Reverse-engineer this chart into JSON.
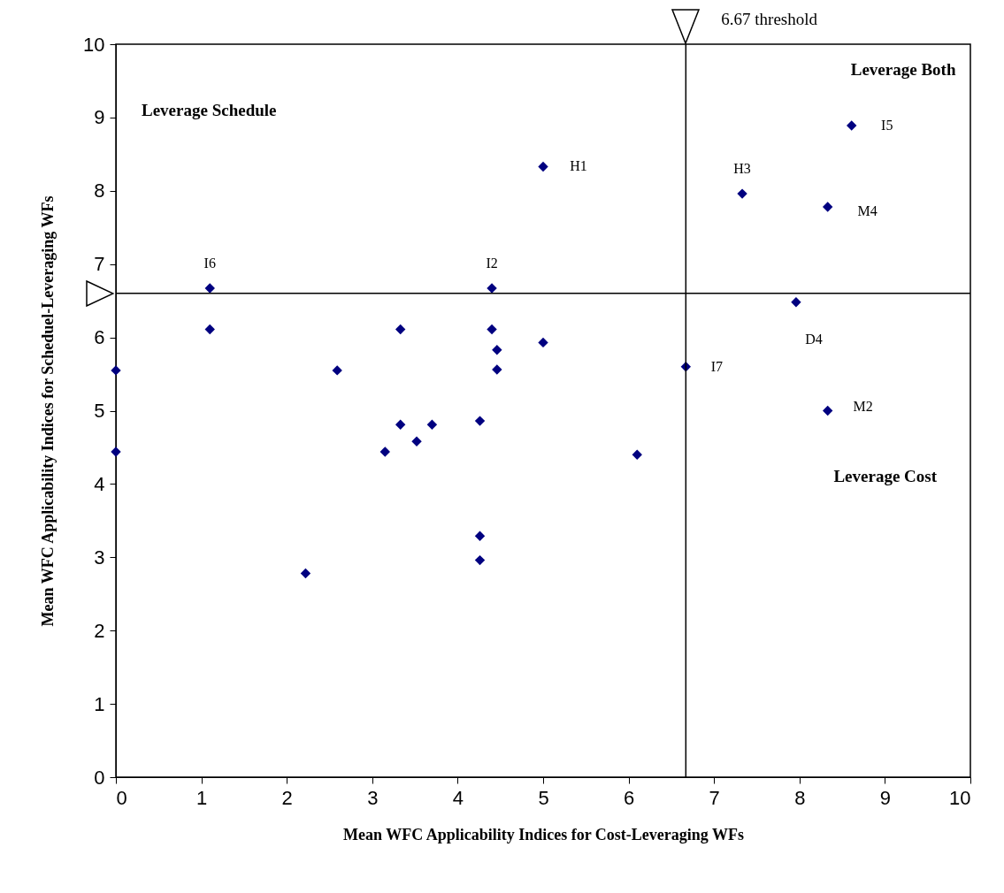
{
  "chart_data": {
    "type": "scatter",
    "xlabel": "Mean WFC Applicability Indices for Cost-Leveraging WFs",
    "ylabel": "Mean WFC Applicability Indices for Scheduel-Leveraging WFs",
    "x": [
      0,
      0,
      1.1,
      1.1,
      2.22,
      2.59,
      3.15,
      3.33,
      3.33,
      3.52,
      3.7,
      4.26,
      4.26,
      4.26,
      4.4,
      4.4,
      4.46,
      4.46,
      5,
      5,
      6.1,
      6.67,
      7.33,
      7.96,
      8.33,
      8.33,
      8.61
    ],
    "series": [
      {
        "color": "#000080",
        "values": [
          5.55,
          4.44,
          6.67,
          6.11,
          2.78,
          5.55,
          4.44,
          6.11,
          4.81,
          4.58,
          4.81,
          4.86,
          3.29,
          2.96,
          6.67,
          6.11,
          5.83,
          5.56,
          5.93,
          8.33,
          4.4,
          5.6,
          7.96,
          6.48,
          7.78,
          5,
          8.89
        ]
      }
    ],
    "marker": "diamond",
    "xlim": [
      0,
      10
    ],
    "ylim": [
      0,
      10
    ],
    "xticks": [
      0,
      1,
      2,
      3,
      4,
      5,
      6,
      7,
      8,
      9,
      10
    ],
    "yticks": [
      0,
      1,
      2,
      3,
      4,
      5,
      6,
      7,
      8,
      9,
      10
    ],
    "grid": false,
    "ref_lines": [
      {
        "axis": "x",
        "value": 6.67,
        "label": "6.67 threshold",
        "color": "#000000"
      },
      {
        "axis": "y",
        "value": 6.6,
        "color": "#000000"
      }
    ],
    "annotations": [
      "Leverage Schedule",
      "Leverage Both",
      "Leverage Cost",
      {
        "text": "I6",
        "x": 1.1,
        "y": 6.67
      },
      {
        "text": "I2",
        "x": 4.4,
        "y": 6.67
      },
      {
        "text": "H1",
        "x": 5,
        "y": 8.33
      },
      {
        "text": "H3",
        "x": 7.33,
        "y": 7.96
      },
      {
        "text": "I5",
        "x": 8.61,
        "y": 8.89
      },
      {
        "text": "M4",
        "x": 8.33,
        "y": 7.78
      },
      {
        "text": "D4",
        "x": 7.96,
        "y": 6.48
      },
      {
        "text": "I7",
        "x": 6.67,
        "y": 5.6
      },
      {
        "text": "M2",
        "x": 8.33,
        "y": 5
      }
    ]
  }
}
